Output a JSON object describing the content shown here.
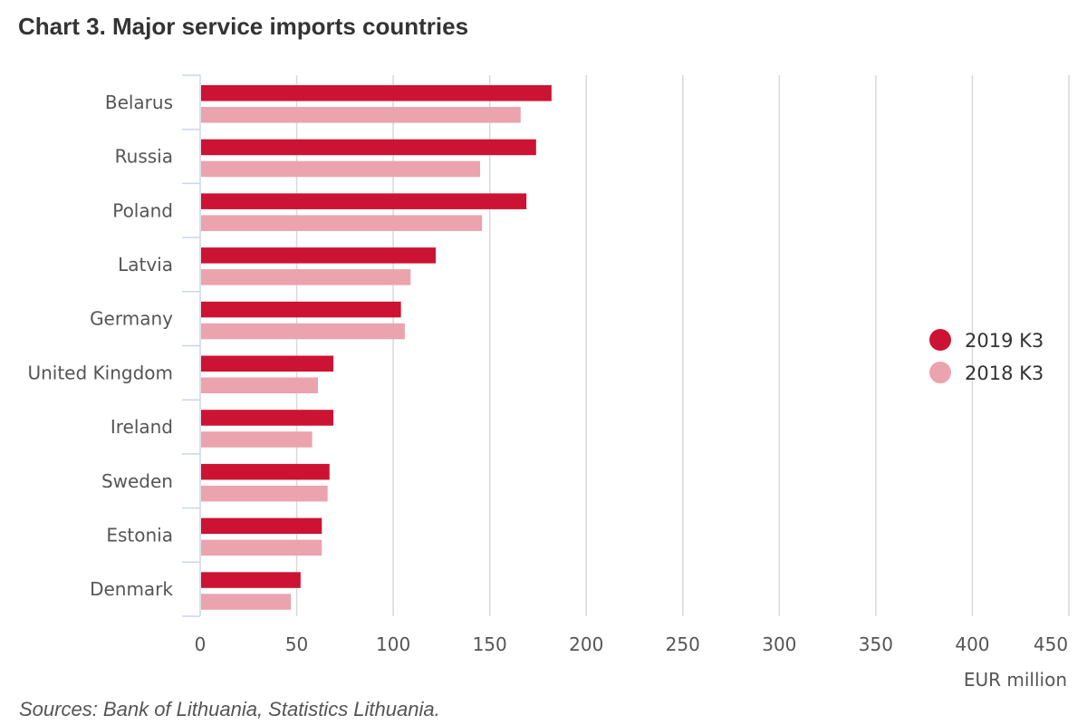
{
  "title": "Chart 3. Major service imports countries",
  "source": "Sources: Bank of Lithuania, Statistics Lithuania.",
  "colors": {
    "series_2019": "#cc1333",
    "series_2018": "#eba3ad",
    "grid": "#d9d9d9",
    "axis": "#ccd6eb"
  },
  "chart_data": {
    "type": "bar",
    "orientation": "horizontal",
    "title": "Chart 3. Major service imports countries",
    "categories": [
      "Belarus",
      "Russia",
      "Poland",
      "Latvia",
      "Germany",
      "United Kingdom",
      "Ireland",
      "Sweden",
      "Estonia",
      "Denmark"
    ],
    "series": [
      {
        "name": "2019 K3",
        "values": [
          182,
          174,
          169,
          122,
          104,
          69,
          69,
          67,
          63,
          52
        ]
      },
      {
        "name": "2018 K3",
        "values": [
          166,
          145,
          146,
          109,
          106,
          61,
          58,
          66,
          63,
          47
        ]
      }
    ],
    "xlabel": "EUR million",
    "ylabel": "",
    "xlim": [
      0,
      450
    ],
    "xticks": [
      0,
      50,
      100,
      150,
      200,
      250,
      300,
      350,
      400,
      450
    ],
    "grid": true,
    "legend": "right"
  }
}
